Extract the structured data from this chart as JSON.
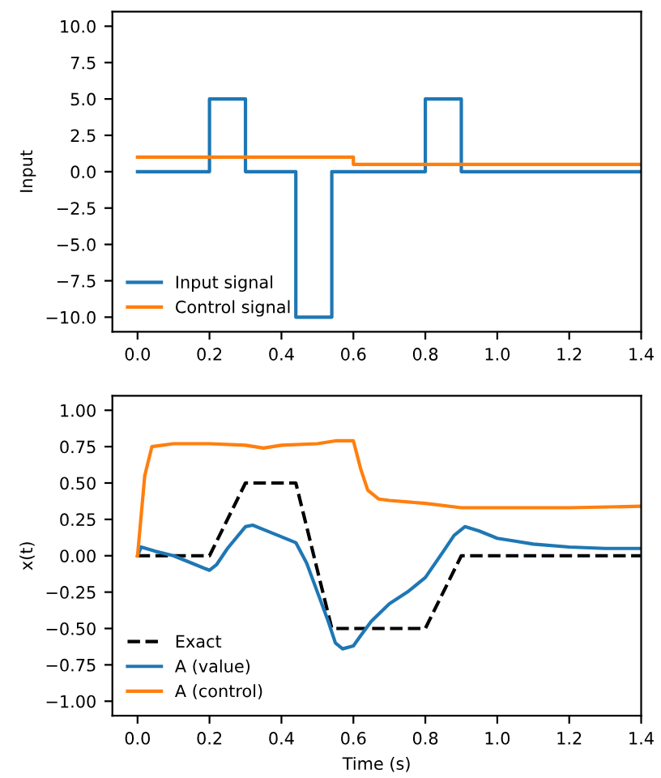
{
  "chart_data": [
    {
      "type": "step",
      "ylabel": "Input",
      "xlim": [
        -0.07,
        1.4
      ],
      "ylim": [
        -11,
        11
      ],
      "xticks": [
        {
          "value": 0,
          "label": "0.0"
        },
        {
          "value": 0.2,
          "label": "0.2"
        },
        {
          "value": 0.4,
          "label": "0.4"
        },
        {
          "value": 0.6,
          "label": "0.6"
        },
        {
          "value": 0.8,
          "label": "0.8"
        },
        {
          "value": 1.0,
          "label": "1.0"
        },
        {
          "value": 1.2,
          "label": "1.2"
        },
        {
          "value": 1.4,
          "label": "1.4"
        }
      ],
      "yticks": [
        {
          "value": -10,
          "label": "−10.0"
        },
        {
          "value": -7.5,
          "label": "−7.5"
        },
        {
          "value": -5,
          "label": "−5.0"
        },
        {
          "value": -2.5,
          "label": "−2.5"
        },
        {
          "value": 0,
          "label": "0.0"
        },
        {
          "value": 2.5,
          "label": "2.5"
        },
        {
          "value": 5,
          "label": "5.0"
        },
        {
          "value": 7.5,
          "label": "7.5"
        },
        {
          "value": 10,
          "label": "10.0"
        }
      ],
      "legend": "bottom left",
      "grid": false,
      "line_style": "solid",
      "series": [
        {
          "name": "Input signal",
          "color": "#1f77b4",
          "x": [
            0,
            0.2,
            0.3,
            0.44,
            0.54,
            0.8,
            0.9,
            1.4
          ],
          "values": [
            0,
            5,
            0,
            -10,
            0,
            5,
            0,
            0
          ]
        },
        {
          "name": "Control signal",
          "color": "#ff7f0e",
          "x": [
            0,
            0.6,
            1.4
          ],
          "values": [
            1.0,
            0.5,
            0.5
          ]
        }
      ]
    },
    {
      "type": "line",
      "xlabel": "Time (s)",
      "ylabel": "x(t)",
      "xlim": [
        -0.07,
        1.4
      ],
      "ylim": [
        -1.1,
        1.1
      ],
      "xticks": [
        {
          "value": 0,
          "label": "0.0"
        },
        {
          "value": 0.2,
          "label": "0.2"
        },
        {
          "value": 0.4,
          "label": "0.4"
        },
        {
          "value": 0.6,
          "label": "0.6"
        },
        {
          "value": 0.8,
          "label": "0.8"
        },
        {
          "value": 1.0,
          "label": "1.0"
        },
        {
          "value": 1.2,
          "label": "1.2"
        },
        {
          "value": 1.4,
          "label": "1.4"
        }
      ],
      "yticks": [
        {
          "value": -1,
          "label": "−1.00"
        },
        {
          "value": -0.75,
          "label": "−0.75"
        },
        {
          "value": -0.5,
          "label": "−0.50"
        },
        {
          "value": -0.25,
          "label": "−0.25"
        },
        {
          "value": 0,
          "label": "0.00"
        },
        {
          "value": 0.25,
          "label": "0.25"
        },
        {
          "value": 0.5,
          "label": "0.50"
        },
        {
          "value": 0.75,
          "label": "0.75"
        },
        {
          "value": 1,
          "label": "1.00"
        }
      ],
      "legend": "bottom left",
      "grid": false,
      "series": [
        {
          "name": "Exact",
          "color": "#000000",
          "line_style": "dashed",
          "x": [
            0,
            0.2,
            0.3,
            0.44,
            0.54,
            0.8,
            0.9,
            1.4
          ],
          "values": [
            0,
            0,
            0.5,
            0.5,
            -0.5,
            -0.5,
            0,
            0
          ]
        },
        {
          "name": "A (value)",
          "color": "#1f77b4",
          "line_style": "solid",
          "x": [
            0,
            0.01,
            0.05,
            0.1,
            0.15,
            0.2,
            0.22,
            0.25,
            0.3,
            0.32,
            0.35,
            0.4,
            0.44,
            0.47,
            0.5,
            0.53,
            0.55,
            0.57,
            0.6,
            0.62,
            0.65,
            0.7,
            0.75,
            0.8,
            0.85,
            0.88,
            0.91,
            0.95,
            1.0,
            1.05,
            1.1,
            1.2,
            1.3,
            1.4
          ],
          "values": [
            0,
            0.06,
            0.03,
            0.0,
            -0.05,
            -0.1,
            -0.06,
            0.05,
            0.2,
            0.21,
            0.18,
            0.13,
            0.09,
            -0.05,
            -0.25,
            -0.45,
            -0.6,
            -0.64,
            -0.62,
            -0.55,
            -0.45,
            -0.33,
            -0.25,
            -0.15,
            0.03,
            0.14,
            0.2,
            0.17,
            0.12,
            0.1,
            0.08,
            0.06,
            0.05,
            0.05
          ]
        },
        {
          "name": "A (control)",
          "color": "#ff7f0e",
          "line_style": "solid",
          "x": [
            0,
            0.02,
            0.04,
            0.1,
            0.2,
            0.3,
            0.35,
            0.4,
            0.5,
            0.55,
            0.6,
            0.62,
            0.64,
            0.67,
            0.7,
            0.8,
            0.9,
            1.0,
            1.2,
            1.4
          ],
          "values": [
            0,
            0.55,
            0.75,
            0.77,
            0.77,
            0.76,
            0.74,
            0.76,
            0.77,
            0.79,
            0.79,
            0.6,
            0.45,
            0.39,
            0.38,
            0.36,
            0.33,
            0.33,
            0.33,
            0.34
          ]
        }
      ]
    }
  ]
}
